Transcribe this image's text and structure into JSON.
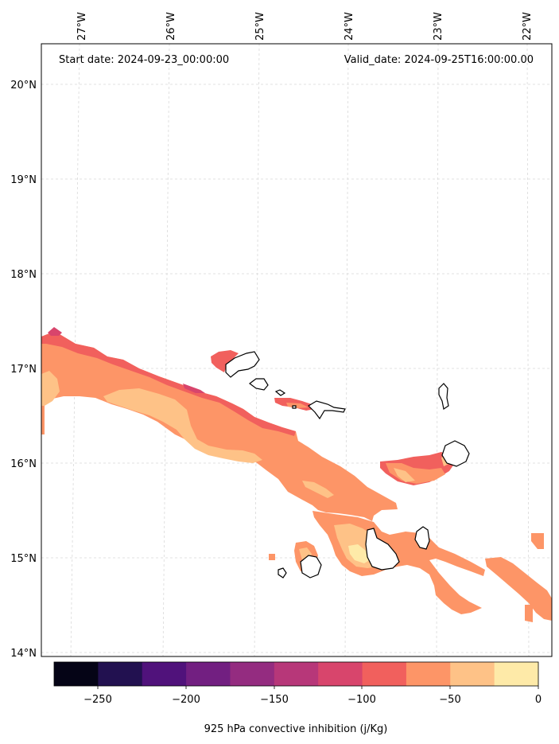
{
  "header": {
    "start_date": "Start date: 2024-09-23_00:00:00",
    "valid_date": "Valid_date: 2024-09-25T16:00:00.00"
  },
  "map": {
    "lon_labels": [
      "27°W",
      "26°W",
      "25°W",
      "24°W",
      "23°W",
      "22°W"
    ],
    "lat_labels": [
      "20°N",
      "19°N",
      "18°N",
      "17°N",
      "16°N",
      "15°N",
      "14°N"
    ],
    "gridlines": true,
    "coastline_color": "#000000"
  },
  "colorbar": {
    "label": "925 hPa convective inhibition (j/Kg)",
    "tick_labels": [
      "−250",
      "−200",
      "−150",
      "−100",
      "−50",
      "0"
    ],
    "range": [
      -275,
      0
    ],
    "step": 25,
    "colors": [
      "#050416",
      "#221150",
      "#50127b",
      "#721f81",
      "#942c80",
      "#b73779",
      "#d8456c",
      "#f1605d",
      "#fd9567",
      "#fec287",
      "#feeaa8"
    ]
  },
  "fill_colors": {
    "high": "#feeaa8",
    "light": "#fec287",
    "mid": "#fd9567",
    "red": "#f1605d",
    "dark": "#d8456c",
    "darker": "#b73779"
  }
}
